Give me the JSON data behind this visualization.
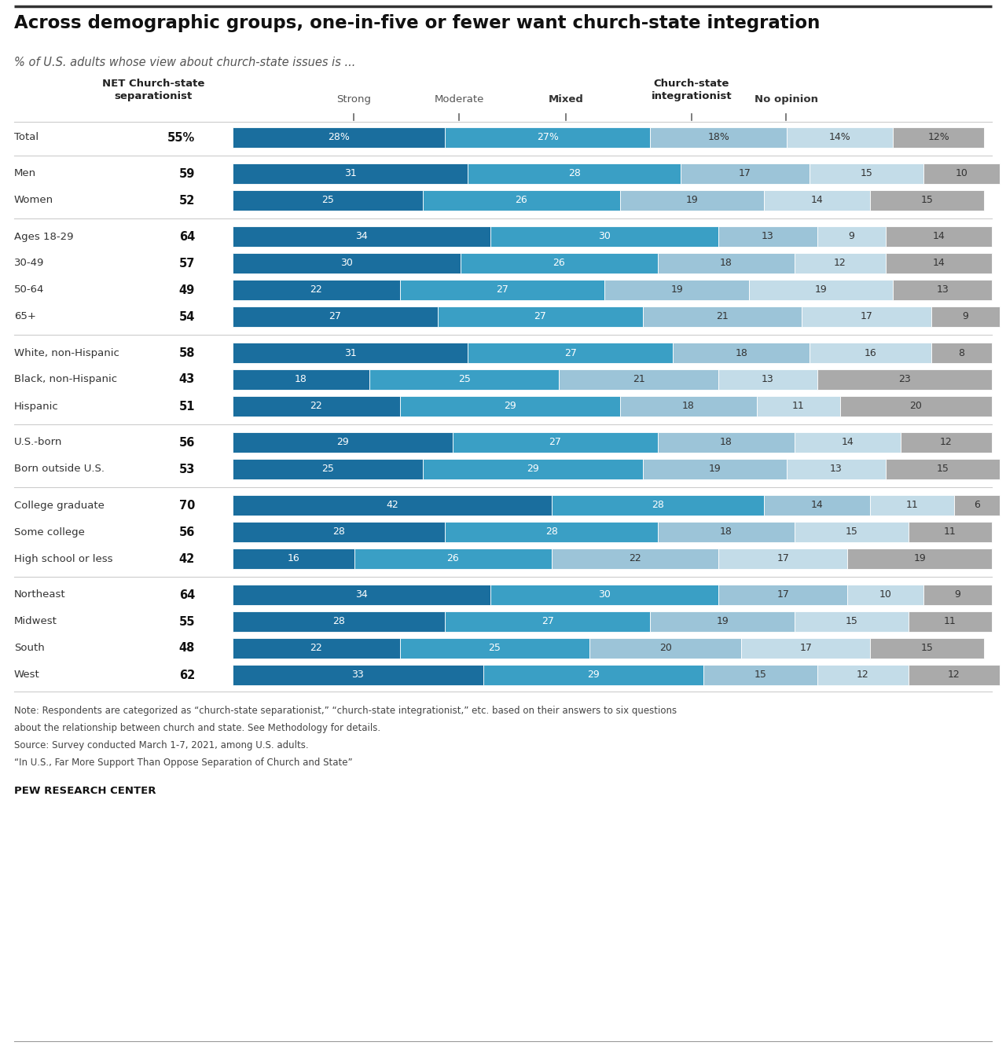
{
  "title": "Across demographic groups, one-in-five or fewer want church-state integration",
  "subtitle": "% of U.S. adults whose view about church-state issues is ...",
  "colors": {
    "strong": "#1a6e9e",
    "moderate": "#3a9fc5",
    "mixed": "#9cc4d8",
    "integrationist": "#c3dce8",
    "no_opinion": "#aaaaaa"
  },
  "rows": [
    {
      "label": "Total",
      "net": "55%",
      "strong": 28,
      "moderate": 27,
      "mixed": 18,
      "integrationist": 14,
      "no_opinion": 12,
      "is_total": true,
      "group": 0
    },
    {
      "label": "Men",
      "net": "59",
      "strong": 31,
      "moderate": 28,
      "mixed": 17,
      "integrationist": 15,
      "no_opinion": 10,
      "is_total": false,
      "group": 1
    },
    {
      "label": "Women",
      "net": "52",
      "strong": 25,
      "moderate": 26,
      "mixed": 19,
      "integrationist": 14,
      "no_opinion": 15,
      "is_total": false,
      "group": 1
    },
    {
      "label": "Ages 18-29",
      "net": "64",
      "strong": 34,
      "moderate": 30,
      "mixed": 13,
      "integrationist": 9,
      "no_opinion": 14,
      "is_total": false,
      "group": 2
    },
    {
      "label": "30-49",
      "net": "57",
      "strong": 30,
      "moderate": 26,
      "mixed": 18,
      "integrationist": 12,
      "no_opinion": 14,
      "is_total": false,
      "group": 2
    },
    {
      "label": "50-64",
      "net": "49",
      "strong": 22,
      "moderate": 27,
      "mixed": 19,
      "integrationist": 19,
      "no_opinion": 13,
      "is_total": false,
      "group": 2
    },
    {
      "label": "65+",
      "net": "54",
      "strong": 27,
      "moderate": 27,
      "mixed": 21,
      "integrationist": 17,
      "no_opinion": 9,
      "is_total": false,
      "group": 2
    },
    {
      "label": "White, non-Hispanic",
      "net": "58",
      "strong": 31,
      "moderate": 27,
      "mixed": 18,
      "integrationist": 16,
      "no_opinion": 8,
      "is_total": false,
      "group": 3
    },
    {
      "label": "Black, non-Hispanic",
      "net": "43",
      "strong": 18,
      "moderate": 25,
      "mixed": 21,
      "integrationist": 13,
      "no_opinion": 23,
      "is_total": false,
      "group": 3
    },
    {
      "label": "Hispanic",
      "net": "51",
      "strong": 22,
      "moderate": 29,
      "mixed": 18,
      "integrationist": 11,
      "no_opinion": 20,
      "is_total": false,
      "group": 3
    },
    {
      "label": "U.S.-born",
      "net": "56",
      "strong": 29,
      "moderate": 27,
      "mixed": 18,
      "integrationist": 14,
      "no_opinion": 12,
      "is_total": false,
      "group": 4
    },
    {
      "label": "Born outside U.S.",
      "net": "53",
      "strong": 25,
      "moderate": 29,
      "mixed": 19,
      "integrationist": 13,
      "no_opinion": 15,
      "is_total": false,
      "group": 4
    },
    {
      "label": "College graduate",
      "net": "70",
      "strong": 42,
      "moderate": 28,
      "mixed": 14,
      "integrationist": 11,
      "no_opinion": 6,
      "is_total": false,
      "group": 5
    },
    {
      "label": "Some college",
      "net": "56",
      "strong": 28,
      "moderate": 28,
      "mixed": 18,
      "integrationist": 15,
      "no_opinion": 11,
      "is_total": false,
      "group": 5
    },
    {
      "label": "High school or less",
      "net": "42",
      "strong": 16,
      "moderate": 26,
      "mixed": 22,
      "integrationist": 17,
      "no_opinion": 19,
      "is_total": false,
      "group": 5
    },
    {
      "label": "Northeast",
      "net": "64",
      "strong": 34,
      "moderate": 30,
      "mixed": 17,
      "integrationist": 10,
      "no_opinion": 9,
      "is_total": false,
      "group": 6
    },
    {
      "label": "Midwest",
      "net": "55",
      "strong": 28,
      "moderate": 27,
      "mixed": 19,
      "integrationist": 15,
      "no_opinion": 11,
      "is_total": false,
      "group": 6
    },
    {
      "label": "South",
      "net": "48",
      "strong": 22,
      "moderate": 25,
      "mixed": 20,
      "integrationist": 17,
      "no_opinion": 15,
      "is_total": false,
      "group": 6
    },
    {
      "label": "West",
      "net": "62",
      "strong": 33,
      "moderate": 29,
      "mixed": 15,
      "integrationist": 12,
      "no_opinion": 12,
      "is_total": false,
      "group": 6
    }
  ],
  "note_lines": [
    "Note: Respondents are categorized as “church-state separationist,” “church-state integrationist,” etc. based on their answers to six questions",
    "about the relationship between church and state. See Methodology for details.",
    "Source: Survey conducted March 1-7, 2021, among U.S. adults.",
    "“In U.S., Far More Support Than Oppose Separation of Church and State”"
  ],
  "footer": "PEW RESEARCH CENTER"
}
